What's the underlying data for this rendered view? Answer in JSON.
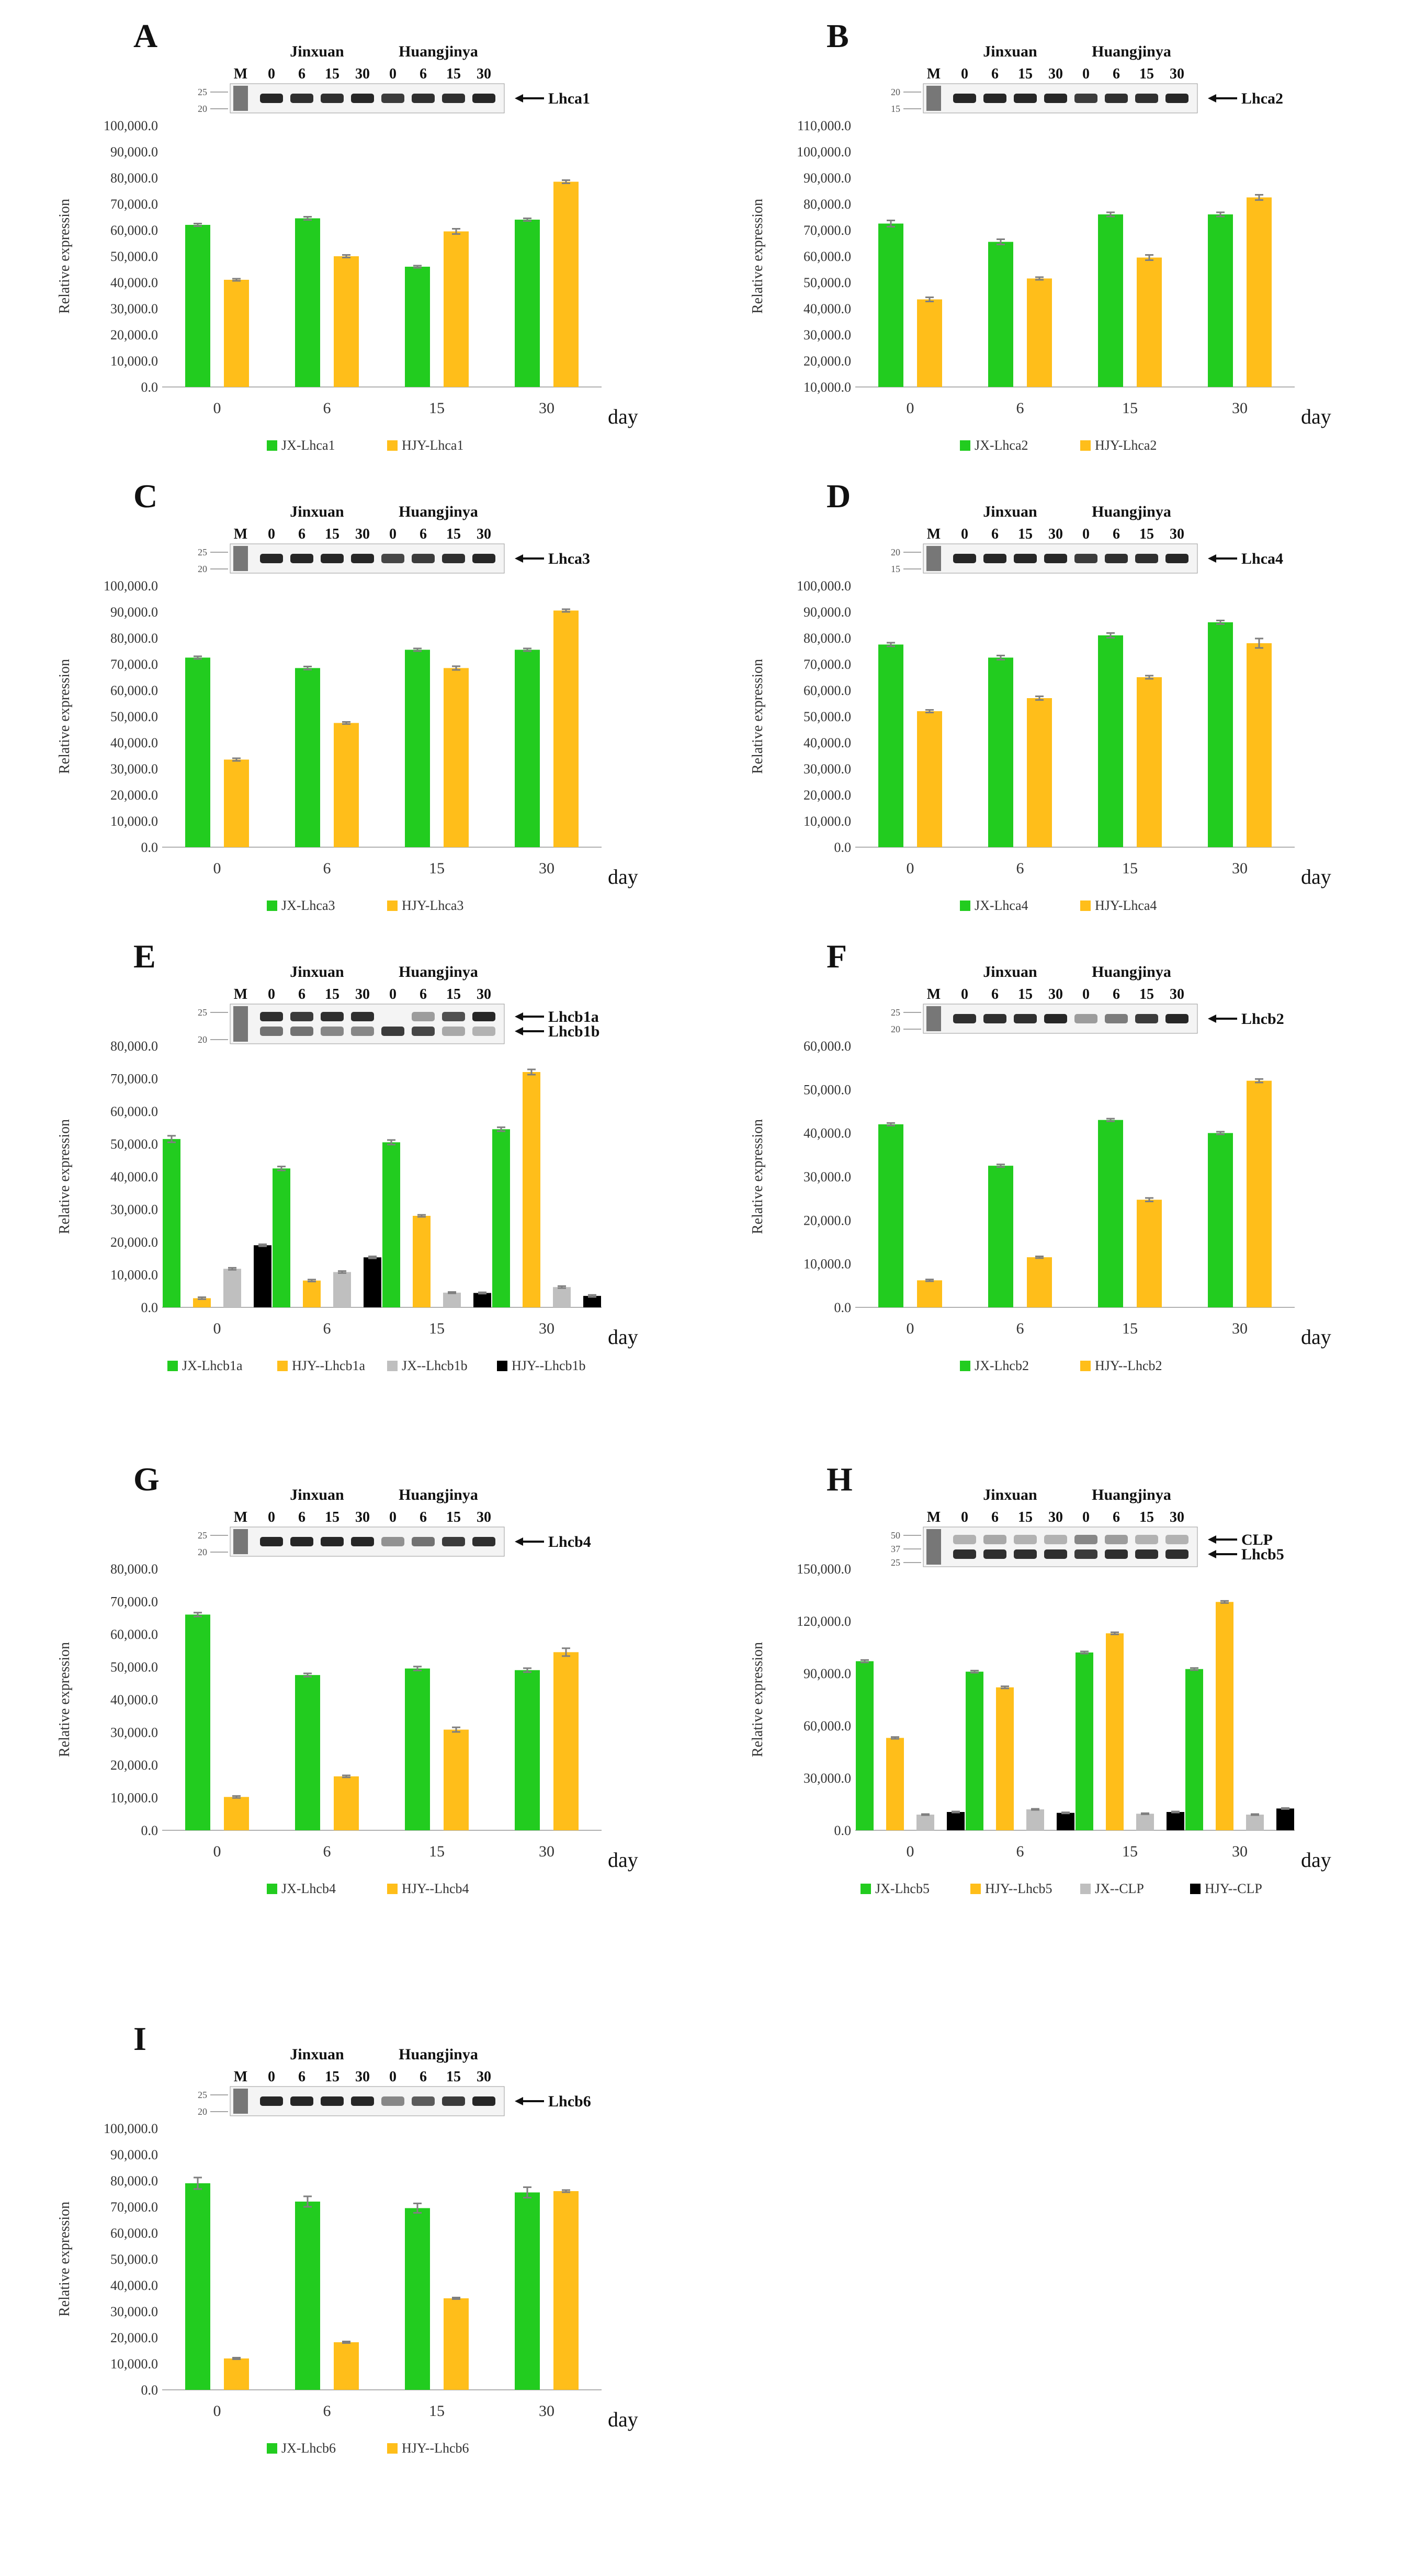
{
  "figure": {
    "day_label": "day",
    "ylabel": "Relative expression",
    "gel": {
      "marker_label": "M",
      "cultivar_left": "Jinxuan",
      "cultivar_right": "Huangjinya",
      "lane_labels": [
        "0",
        "6",
        "15",
        "30",
        "0",
        "6",
        "15",
        "30"
      ]
    }
  },
  "colors": {
    "jx": "#22cc1f",
    "hjy": "#ffbe1a",
    "jx_clp": "#bfbfbf",
    "hjy_clp": "#000000",
    "axis": "#b0b0b0",
    "text": "#333333",
    "gel_bg": "#f4f4f4",
    "band": "#1a1a1a",
    "errorbar": "#7f7f7f"
  },
  "chart_data": [
    {
      "panel": "A",
      "type": "bar",
      "categories": [
        "0",
        "6",
        "15",
        "30"
      ],
      "series": [
        {
          "name": "JX-Lhca1",
          "color_key": "jx",
          "values": [
            62000,
            64500,
            46000,
            64000
          ],
          "errors": [
            500,
            600,
            400,
            500
          ]
        },
        {
          "name": "HJY-Lhca1",
          "color_key": "hjy",
          "values": [
            41000,
            50000,
            59500,
            78500
          ],
          "errors": [
            400,
            500,
            1000,
            600
          ]
        }
      ],
      "ylim": [
        0,
        100000
      ],
      "yticks": [
        "0.0",
        "10,000.0",
        "20,000.0",
        "30,000.0",
        "40,000.0",
        "50,000.0",
        "60,000.0",
        "70,000.0",
        "80,000.0",
        "90,000.0",
        "100,000.0"
      ],
      "gel": {
        "marker_sizes": [
          "25",
          "20"
        ],
        "bands": [
          {
            "label": "Lhca1",
            "strengths": [
              0.95,
              0.9,
              0.9,
              0.95,
              0.85,
              0.9,
              0.9,
              0.95
            ]
          }
        ]
      }
    },
    {
      "panel": "B",
      "type": "bar",
      "categories": [
        "0",
        "6",
        "15",
        "30"
      ],
      "series": [
        {
          "name": "JX-Lhca2",
          "color_key": "jx",
          "values": [
            72500,
            65500,
            76000,
            76000
          ],
          "errors": [
            1200,
            1000,
            800,
            800
          ]
        },
        {
          "name": "HJY-Lhca2",
          "color_key": "hjy",
          "values": [
            43500,
            51500,
            59500,
            82500
          ],
          "errors": [
            800,
            500,
            1000,
            1000
          ]
        }
      ],
      "ylim": [
        10000,
        110000
      ],
      "yticks": [
        "10,000.0",
        "20,000.0",
        "30,000.0",
        "40,000.0",
        "50,000.0",
        "60,000.0",
        "70,000.0",
        "80,000.0",
        "90,000.0",
        "100,000.0",
        "110,000.0"
      ],
      "gel": {
        "marker_sizes": [
          "20",
          "15"
        ],
        "bands": [
          {
            "label": "Lhca2",
            "strengths": [
              0.95,
              0.95,
              0.95,
              0.95,
              0.85,
              0.9,
              0.9,
              0.95
            ]
          }
        ]
      }
    },
    {
      "panel": "C",
      "type": "bar",
      "categories": [
        "0",
        "6",
        "15",
        "30"
      ],
      "series": [
        {
          "name": "JX-Lhca3",
          "color_key": "jx",
          "values": [
            72500,
            68500,
            75500,
            75500
          ],
          "errors": [
            500,
            600,
            500,
            500
          ]
        },
        {
          "name": "HJY-Lhca3",
          "color_key": "hjy",
          "values": [
            33500,
            47500,
            68500,
            90500
          ],
          "errors": [
            500,
            400,
            700,
            500
          ]
        }
      ],
      "ylim": [
        0,
        100000
      ],
      "yticks": [
        "0.0",
        "10,000.0",
        "20,000.0",
        "30,000.0",
        "40,000.0",
        "50,000.0",
        "60,000.0",
        "70,000.0",
        "80,000.0",
        "90,000.0",
        "100,000.0"
      ],
      "gel": {
        "marker_sizes": [
          "25",
          "20"
        ],
        "bands": [
          {
            "label": "Lhca3",
            "strengths": [
              0.95,
              0.95,
              0.95,
              0.95,
              0.8,
              0.85,
              0.9,
              0.95
            ]
          }
        ]
      }
    },
    {
      "panel": "D",
      "type": "bar",
      "categories": [
        "0",
        "6",
        "15",
        "30"
      ],
      "series": [
        {
          "name": "JX-Lhca4",
          "color_key": "jx",
          "values": [
            77500,
            72500,
            81000,
            86000
          ],
          "errors": [
            700,
            800,
            900,
            700
          ]
        },
        {
          "name": "HJY-Lhca4",
          "color_key": "hjy",
          "values": [
            52000,
            57000,
            65000,
            78000
          ],
          "errors": [
            500,
            700,
            600,
            1800
          ]
        }
      ],
      "ylim": [
        0,
        100000
      ],
      "yticks": [
        "0.0",
        "10,000.0",
        "20,000.0",
        "30,000.0",
        "40,000.0",
        "50,000.0",
        "60,000.0",
        "70,000.0",
        "80,000.0",
        "90,000.0",
        "100,000.0"
      ],
      "gel": {
        "marker_sizes": [
          "20",
          "15"
        ],
        "bands": [
          {
            "label": "Lhca4",
            "strengths": [
              0.95,
              0.95,
              0.95,
              0.95,
              0.85,
              0.9,
              0.9,
              0.95
            ]
          }
        ]
      }
    },
    {
      "panel": "E",
      "type": "bar",
      "categories": [
        "0",
        "6",
        "15",
        "30"
      ],
      "series": [
        {
          "name": "JX-Lhcb1a",
          "color_key": "jx",
          "values": [
            51500,
            42500,
            50500,
            54500
          ],
          "errors": [
            1000,
            600,
            700,
            600
          ]
        },
        {
          "name": "HJY--Lhcb1a",
          "color_key": "hjy",
          "values": [
            2800,
            8200,
            28000,
            72000
          ],
          "errors": [
            300,
            300,
            300,
            800
          ]
        },
        {
          "name": "JX--Lhcb1b",
          "color_key": "jx_clp",
          "values": [
            11800,
            10800,
            4500,
            6200
          ],
          "errors": [
            300,
            300,
            200,
            300
          ]
        },
        {
          "name": "HJY--Lhcb1b",
          "color_key": "hjy_clp",
          "values": [
            19000,
            15300,
            4400,
            3500
          ],
          "errors": [
            300,
            300,
            200,
            300
          ]
        }
      ],
      "ylim": [
        0,
        80000
      ],
      "yticks": [
        "0.0",
        "10,000.0",
        "20,000.0",
        "30,000.0",
        "40,000.0",
        "50,000.0",
        "60,000.0",
        "70,000.0",
        "80,000.0"
      ],
      "gel": {
        "marker_sizes": [
          "25",
          "20"
        ],
        "bands": [
          {
            "label": "Lhcb1a",
            "strengths": [
              0.9,
              0.85,
              0.9,
              0.9,
              0.0,
              0.4,
              0.75,
              0.95
            ]
          },
          {
            "label": "Lhcb1b",
            "strengths": [
              0.6,
              0.6,
              0.5,
              0.5,
              0.85,
              0.8,
              0.35,
              0.3
            ]
          }
        ]
      }
    },
    {
      "panel": "F",
      "type": "bar",
      "categories": [
        "0",
        "6",
        "15",
        "30"
      ],
      "series": [
        {
          "name": "JX-Lhcb2",
          "color_key": "jx",
          "values": [
            42000,
            32500,
            43000,
            40000
          ],
          "errors": [
            300,
            300,
            300,
            300
          ]
        },
        {
          "name": "HJY--Lhcb2",
          "color_key": "hjy",
          "values": [
            6200,
            11500,
            24700,
            52000
          ],
          "errors": [
            200,
            200,
            400,
            400
          ]
        }
      ],
      "ylim": [
        0,
        60000
      ],
      "yticks": [
        "0.0",
        "10,000.0",
        "20,000.0",
        "30,000.0",
        "40,000.0",
        "50,000.0",
        "60,000.0"
      ],
      "gel": {
        "marker_sizes": [
          "25",
          "20"
        ],
        "bands": [
          {
            "label": "Lhcb2",
            "strengths": [
              0.9,
              0.9,
              0.9,
              0.95,
              0.4,
              0.55,
              0.85,
              0.95
            ]
          }
        ]
      }
    },
    {
      "panel": "G",
      "type": "bar",
      "categories": [
        "0",
        "6",
        "15",
        "30"
      ],
      "series": [
        {
          "name": "JX-Lhcb4",
          "color_key": "jx",
          "values": [
            66000,
            47500,
            49500,
            49000
          ],
          "errors": [
            600,
            500,
            600,
            600
          ]
        },
        {
          "name": "HJY--Lhcb4",
          "color_key": "hjy",
          "values": [
            10200,
            16500,
            30800,
            54500
          ],
          "errors": [
            300,
            300,
            700,
            1200
          ]
        }
      ],
      "ylim": [
        0,
        80000
      ],
      "yticks": [
        "0.0",
        "10,000.0",
        "20,000.0",
        "30,000.0",
        "40,000.0",
        "50,000.0",
        "60,000.0",
        "70,000.0",
        "80,000.0"
      ],
      "gel": {
        "marker_sizes": [
          "25",
          "20"
        ],
        "bands": [
          {
            "label": "Lhcb4",
            "strengths": [
              0.95,
              0.95,
              0.95,
              0.95,
              0.45,
              0.6,
              0.85,
              0.9
            ]
          }
        ]
      }
    },
    {
      "panel": "H",
      "type": "bar",
      "categories": [
        "0",
        "6",
        "15",
        "30"
      ],
      "series": [
        {
          "name": "JX-Lhcb5",
          "color_key": "jx",
          "values": [
            97000,
            91000,
            102000,
            92500
          ],
          "errors": [
            700,
            600,
            600,
            600
          ]
        },
        {
          "name": "HJY--Lhcb5",
          "color_key": "hjy",
          "values": [
            53000,
            82000,
            113000,
            131000
          ],
          "errors": [
            500,
            600,
            600,
            600
          ]
        },
        {
          "name": "JX--CLP",
          "color_key": "jx_clp",
          "values": [
            9000,
            12000,
            9500,
            9000
          ],
          "errors": [
            300,
            300,
            300,
            300
          ]
        },
        {
          "name": "HJY--CLP",
          "color_key": "hjy_clp",
          "values": [
            10500,
            10000,
            10500,
            12500
          ],
          "errors": [
            300,
            300,
            300,
            300
          ]
        }
      ],
      "ylim": [
        0,
        150000
      ],
      "yticks": [
        "0.0",
        "30,000.0",
        "60,000.0",
        "90,000.0",
        "120,000.0",
        "150,000.0"
      ],
      "gel": {
        "marker_sizes": [
          "50",
          "37",
          "25"
        ],
        "bands": [
          {
            "label": "CLP",
            "strengths": [
              0.3,
              0.35,
              0.3,
              0.3,
              0.5,
              0.4,
              0.3,
              0.3
            ]
          },
          {
            "label": "Lhcb5",
            "strengths": [
              0.9,
              0.9,
              0.9,
              0.9,
              0.85,
              0.9,
              0.9,
              0.9
            ]
          }
        ]
      }
    },
    {
      "panel": "I",
      "type": "bar",
      "categories": [
        "0",
        "6",
        "15",
        "30"
      ],
      "series": [
        {
          "name": "JX-Lhcb6",
          "color_key": "jx",
          "values": [
            79000,
            72000,
            69500,
            75500
          ],
          "errors": [
            2200,
            2000,
            1800,
            2000
          ]
        },
        {
          "name": "HJY--Lhcb6",
          "color_key": "hjy",
          "values": [
            12000,
            18200,
            35000,
            76000
          ],
          "errors": [
            300,
            300,
            300,
            400
          ]
        }
      ],
      "ylim": [
        0,
        100000
      ],
      "yticks": [
        "0.0",
        "10,000.0",
        "20,000.0",
        "30,000.0",
        "40,000.0",
        "50,000.0",
        "60,000.0",
        "70,000.0",
        "80,000.0",
        "90,000.0",
        "100,000.0"
      ],
      "gel": {
        "marker_sizes": [
          "25",
          "20"
        ],
        "bands": [
          {
            "label": "Lhcb6",
            "strengths": [
              0.95,
              0.95,
              0.95,
              0.95,
              0.5,
              0.7,
              0.85,
              0.95
            ]
          }
        ]
      }
    }
  ]
}
